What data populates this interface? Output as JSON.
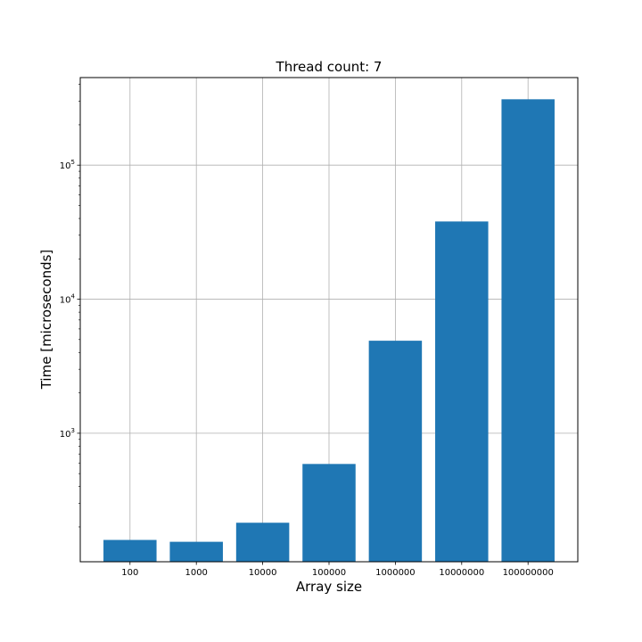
{
  "chart_data": {
    "type": "bar",
    "title": "Thread count: 7",
    "xlabel": "Array size",
    "ylabel": "Time [microseconds]",
    "yscale": "log",
    "ylim": [
      110,
      450000
    ],
    "grid": true,
    "bar_color": "#1f77b4",
    "categories": [
      "100",
      "1000",
      "10000",
      "100000",
      "1000000",
      "10000000",
      "100000000"
    ],
    "values": [
      160,
      155,
      215,
      590,
      4900,
      38000,
      310000
    ],
    "yticks": [
      {
        "value": 1000,
        "base": "10",
        "exp": "3"
      },
      {
        "value": 10000,
        "base": "10",
        "exp": "4"
      },
      {
        "value": 100000,
        "base": "10",
        "exp": "5"
      }
    ]
  }
}
